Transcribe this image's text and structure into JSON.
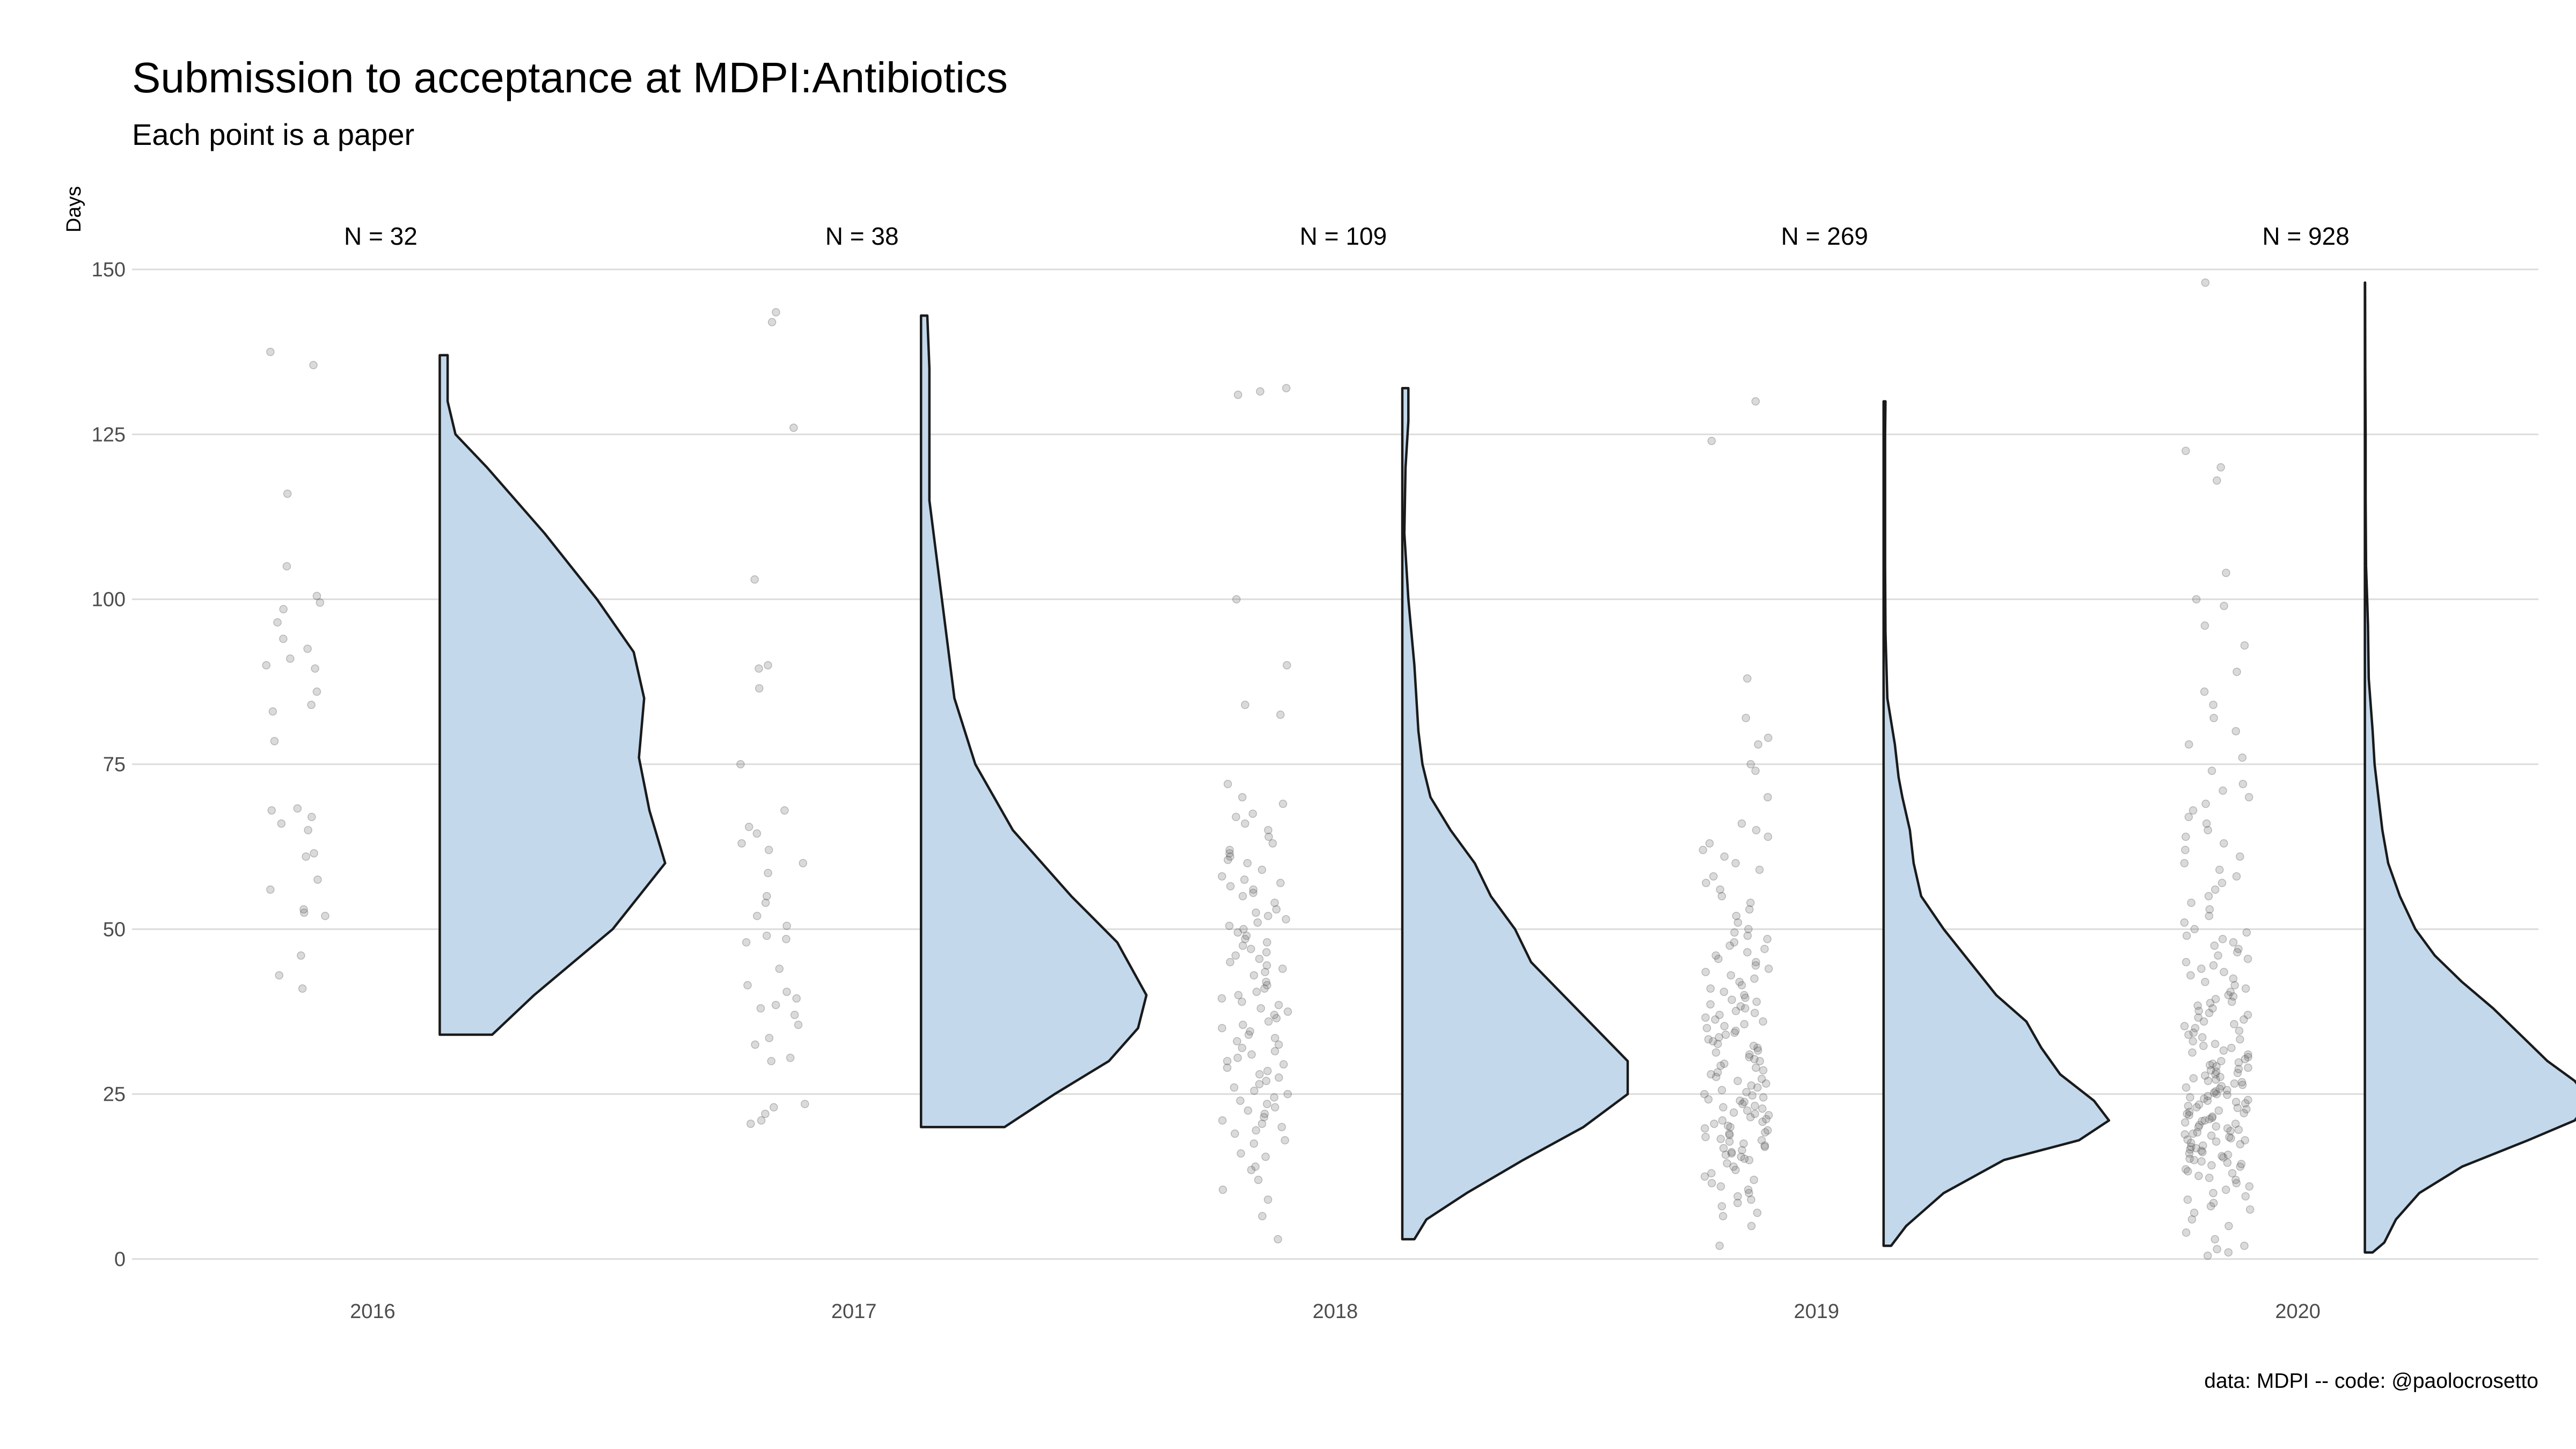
{
  "chart_data": {
    "type": "violin",
    "title": "Submission to acceptance at MDPI:Antibiotics",
    "subtitle": "Each point is a paper",
    "ylabel": "Days",
    "xlabel": "",
    "caption": "data: MDPI -- code: @paolocrosetto",
    "ylim": [
      0,
      150
    ],
    "yticks": [
      "0",
      "25",
      "50",
      "75",
      "100",
      "125",
      "150"
    ],
    "grid": true,
    "legend": "none",
    "fill_color": "#c3d8eb",
    "outline_color": "#1a1a1a",
    "point_color": "#555555",
    "categories": [
      "2016",
      "2017",
      "2018",
      "2019",
      "2020"
    ],
    "groups": [
      {
        "year": "2016",
        "n_label": "N = 32",
        "n": 32,
        "range": [
          34,
          137
        ],
        "density": [
          [
            34,
            0.1
          ],
          [
            40,
            0.18
          ],
          [
            50,
            0.33
          ],
          [
            60,
            0.43
          ],
          [
            68,
            0.4
          ],
          [
            76,
            0.38
          ],
          [
            85,
            0.39
          ],
          [
            92,
            0.37
          ],
          [
            100,
            0.3
          ],
          [
            110,
            0.2
          ],
          [
            120,
            0.09
          ],
          [
            125,
            0.03
          ],
          [
            130,
            0.015
          ],
          [
            137,
            0.015
          ]
        ],
        "points": [
          41,
          43,
          46,
          52,
          52.5,
          53,
          56,
          57.5,
          61,
          61.5,
          65,
          66,
          67,
          68,
          68.3,
          78.5,
          83,
          84,
          86,
          89.5,
          90,
          91,
          92.5,
          94,
          96.5,
          98.5,
          99.5,
          100.5,
          105,
          116,
          135.5,
          137.5
        ]
      },
      {
        "year": "2017",
        "n_label": "N = 38",
        "n": 38,
        "range": [
          20,
          143
        ],
        "density": [
          [
            20,
            0.2
          ],
          [
            25,
            0.32
          ],
          [
            30,
            0.45
          ],
          [
            35,
            0.52
          ],
          [
            40,
            0.54
          ],
          [
            48,
            0.47
          ],
          [
            55,
            0.36
          ],
          [
            65,
            0.22
          ],
          [
            75,
            0.13
          ],
          [
            85,
            0.08
          ],
          [
            95,
            0.06
          ],
          [
            105,
            0.04
          ],
          [
            115,
            0.02
          ],
          [
            125,
            0.02
          ],
          [
            135,
            0.02
          ],
          [
            143,
            0.015
          ]
        ],
        "points": [
          20.5,
          21,
          22,
          23,
          23.5,
          30,
          30.5,
          32.5,
          33.5,
          35.5,
          37,
          38,
          38.5,
          39.5,
          40.5,
          41.5,
          44,
          48,
          48.5,
          49,
          50.5,
          52,
          54,
          55,
          58.5,
          60,
          62,
          63,
          64.5,
          65.5,
          68,
          75,
          86.5,
          89.5,
          90,
          103,
          126,
          142,
          143.5
        ]
      },
      {
        "year": "2018",
        "n_label": "N = 109",
        "n": 109,
        "range": [
          3,
          132
        ],
        "density": [
          [
            3,
            0.03
          ],
          [
            6,
            0.06
          ],
          [
            10,
            0.16
          ],
          [
            15,
            0.3
          ],
          [
            20,
            0.45
          ],
          [
            25,
            0.56
          ],
          [
            30,
            0.56
          ],
          [
            35,
            0.48
          ],
          [
            40,
            0.4
          ],
          [
            45,
            0.32
          ],
          [
            50,
            0.28
          ],
          [
            55,
            0.22
          ],
          [
            60,
            0.18
          ],
          [
            65,
            0.12
          ],
          [
            70,
            0.07
          ],
          [
            75,
            0.05
          ],
          [
            80,
            0.04
          ],
          [
            90,
            0.03
          ],
          [
            100,
            0.015
          ],
          [
            110,
            0.005
          ],
          [
            120,
            0.008
          ],
          [
            127,
            0.015
          ],
          [
            132,
            0.015
          ]
        ],
        "points": [
          3,
          6.5,
          9,
          10.5,
          12,
          13.5,
          14,
          15.5,
          16,
          17.5,
          18,
          19,
          19.5,
          20,
          20.5,
          21,
          21.5,
          22,
          22.5,
          23,
          23.5,
          24,
          24.5,
          25,
          25.5,
          26,
          26.5,
          27,
          27.5,
          28,
          28.5,
          29,
          29.5,
          30,
          30.5,
          31,
          31.5,
          32,
          32.5,
          33,
          33.5,
          34,
          34.5,
          35,
          35.5,
          36,
          36.5,
          37,
          37.5,
          38,
          38.5,
          39,
          39.5,
          40,
          40.5,
          41,
          41.5,
          42,
          43,
          43.5,
          44,
          44.5,
          45,
          45.5,
          46,
          46.5,
          47,
          47.5,
          48,
          48.5,
          49,
          49.5,
          50,
          50.5,
          51,
          51.5,
          52,
          52.5,
          53,
          54,
          55,
          55.5,
          56,
          56.5,
          57,
          57.5,
          58,
          59,
          60,
          60.5,
          61,
          61.5,
          62,
          63,
          64,
          65,
          66,
          67,
          67.5,
          69,
          70,
          72,
          82.5,
          84,
          90,
          100,
          131,
          131.5,
          132
        ]
      },
      {
        "year": "2019",
        "n_label": "N = 269",
        "n": 269,
        "range": [
          2,
          130
        ],
        "density": [
          [
            2,
            0.02
          ],
          [
            5,
            0.06
          ],
          [
            10,
            0.16
          ],
          [
            15,
            0.32
          ],
          [
            18,
            0.52
          ],
          [
            21,
            0.6
          ],
          [
            24,
            0.56
          ],
          [
            28,
            0.47
          ],
          [
            32,
            0.42
          ],
          [
            36,
            0.38
          ],
          [
            40,
            0.3
          ],
          [
            45,
            0.23
          ],
          [
            50,
            0.16
          ],
          [
            55,
            0.1
          ],
          [
            60,
            0.08
          ],
          [
            65,
            0.07
          ],
          [
            70,
            0.05
          ],
          [
            73,
            0.04
          ],
          [
            78,
            0.03
          ],
          [
            85,
            0.01
          ],
          [
            95,
            0.005
          ],
          [
            105,
            0.004
          ],
          [
            115,
            0.004
          ],
          [
            125,
            0.004
          ],
          [
            130,
            0.005
          ]
        ],
        "points": [
          2,
          5,
          6.5,
          7,
          8,
          8.5,
          9,
          9.5,
          10,
          10.5,
          11,
          11.5,
          12,
          12.5,
          13,
          13.5,
          14,
          14.5,
          15,
          15.2,
          15.5,
          15.8,
          16,
          16.2,
          16.5,
          16.8,
          17,
          17.2,
          17.5,
          17.8,
          18,
          18.2,
          18.5,
          18.8,
          19,
          19.2,
          19.5,
          19.8,
          20,
          20.2,
          20.5,
          20.8,
          21,
          21.2,
          21.5,
          21.8,
          22,
          22.2,
          22.5,
          22.8,
          23,
          23.2,
          23.5,
          23.8,
          24,
          24.2,
          24.5,
          24.8,
          25,
          25.3,
          25.6,
          26,
          26.3,
          26.6,
          27,
          27.3,
          27.6,
          28,
          28.3,
          28.6,
          29,
          29.3,
          29.6,
          30,
          30.3,
          30.6,
          31,
          31.3,
          31.6,
          32,
          32.3,
          32.6,
          33,
          33.3,
          33.6,
          34,
          34.3,
          34.6,
          35,
          35.3,
          35.6,
          36,
          36.3,
          36.6,
          37,
          37.3,
          37.6,
          38,
          38.3,
          38.6,
          39,
          39.3,
          39.6,
          40,
          40.5,
          41,
          41.5,
          42,
          42.5,
          43,
          43.5,
          44,
          44.5,
          45,
          45.5,
          46,
          46.5,
          47,
          47.5,
          48,
          48.5,
          49,
          49.5,
          50,
          51,
          52,
          53,
          54,
          55,
          56,
          57,
          58,
          59,
          60,
          61,
          62,
          63,
          64,
          65,
          66,
          70,
          74,
          75,
          78,
          79,
          82,
          88,
          124,
          130
        ]
      },
      {
        "year": "2020",
        "n_label": "N = 928",
        "n": 928,
        "range": [
          1,
          148
        ],
        "density": [
          [
            1,
            0.02
          ],
          [
            2.5,
            0.05
          ],
          [
            6,
            0.08
          ],
          [
            10,
            0.14
          ],
          [
            14,
            0.25
          ],
          [
            18,
            0.42
          ],
          [
            21,
            0.54
          ],
          [
            24,
            0.58
          ],
          [
            27,
            0.54
          ],
          [
            30,
            0.47
          ],
          [
            34,
            0.4
          ],
          [
            38,
            0.33
          ],
          [
            42,
            0.25
          ],
          [
            46,
            0.18
          ],
          [
            50,
            0.13
          ],
          [
            55,
            0.09
          ],
          [
            60,
            0.06
          ],
          [
            65,
            0.045
          ],
          [
            70,
            0.035
          ],
          [
            75,
            0.025
          ],
          [
            80,
            0.02
          ],
          [
            88,
            0.01
          ],
          [
            96,
            0.008
          ],
          [
            100,
            0.006
          ],
          [
            105,
            0.003
          ],
          [
            115,
            0.002
          ],
          [
            125,
            0.002
          ],
          [
            135,
            0.001
          ],
          [
            148,
            0.0005
          ]
        ],
        "points": [
          0.5,
          1,
          1.5,
          2,
          3,
          4,
          5,
          6,
          7,
          7.5,
          8,
          8.5,
          9,
          9.5,
          10,
          10.5,
          11,
          11.5,
          12,
          12.3,
          12.6,
          13,
          13.3,
          13.6,
          14,
          14.2,
          14.4,
          14.6,
          14.8,
          15,
          15.2,
          15.4,
          15.6,
          15.8,
          16,
          16.2,
          16.4,
          16.6,
          16.8,
          17,
          17.2,
          17.4,
          17.6,
          17.8,
          18,
          18.1,
          18.3,
          18.5,
          18.7,
          18.9,
          19,
          19.2,
          19.4,
          19.6,
          19.8,
          20,
          20.1,
          20.3,
          20.5,
          20.7,
          20.9,
          21,
          21.2,
          21.4,
          21.6,
          21.8,
          22,
          22.1,
          22.3,
          22.5,
          22.7,
          22.9,
          23,
          23.2,
          23.4,
          23.6,
          23.8,
          24,
          24.1,
          24.3,
          24.5,
          24.7,
          24.9,
          25,
          25.2,
          25.4,
          25.6,
          25.8,
          26,
          26.2,
          26.4,
          26.6,
          26.8,
          27,
          27.2,
          27.4,
          27.6,
          27.8,
          28,
          28.2,
          28.4,
          28.6,
          28.8,
          29,
          29.2,
          29.4,
          29.6,
          29.8,
          30,
          30.3,
          30.6,
          31,
          31.3,
          31.6,
          32,
          32.3,
          32.6,
          33,
          33.3,
          33.6,
          34,
          34.3,
          34.6,
          35,
          35.3,
          35.6,
          36,
          36.3,
          36.6,
          37,
          37.3,
          37.6,
          38,
          38.4,
          38.8,
          39,
          39.4,
          39.8,
          40,
          40.5,
          41,
          41.5,
          42,
          42.5,
          43,
          43.5,
          44,
          44.5,
          45,
          45.5,
          46,
          46.5,
          47,
          47.5,
          48,
          48.5,
          49,
          49.5,
          50,
          51,
          52,
          53,
          54,
          55,
          56,
          57,
          58,
          59,
          60,
          61,
          62,
          63,
          64,
          65,
          66,
          67,
          68,
          69,
          70,
          71,
          72,
          74,
          76,
          78,
          80,
          82,
          84,
          86,
          89,
          93,
          96,
          99,
          100,
          104,
          118,
          120,
          122.5,
          148
        ]
      }
    ]
  }
}
